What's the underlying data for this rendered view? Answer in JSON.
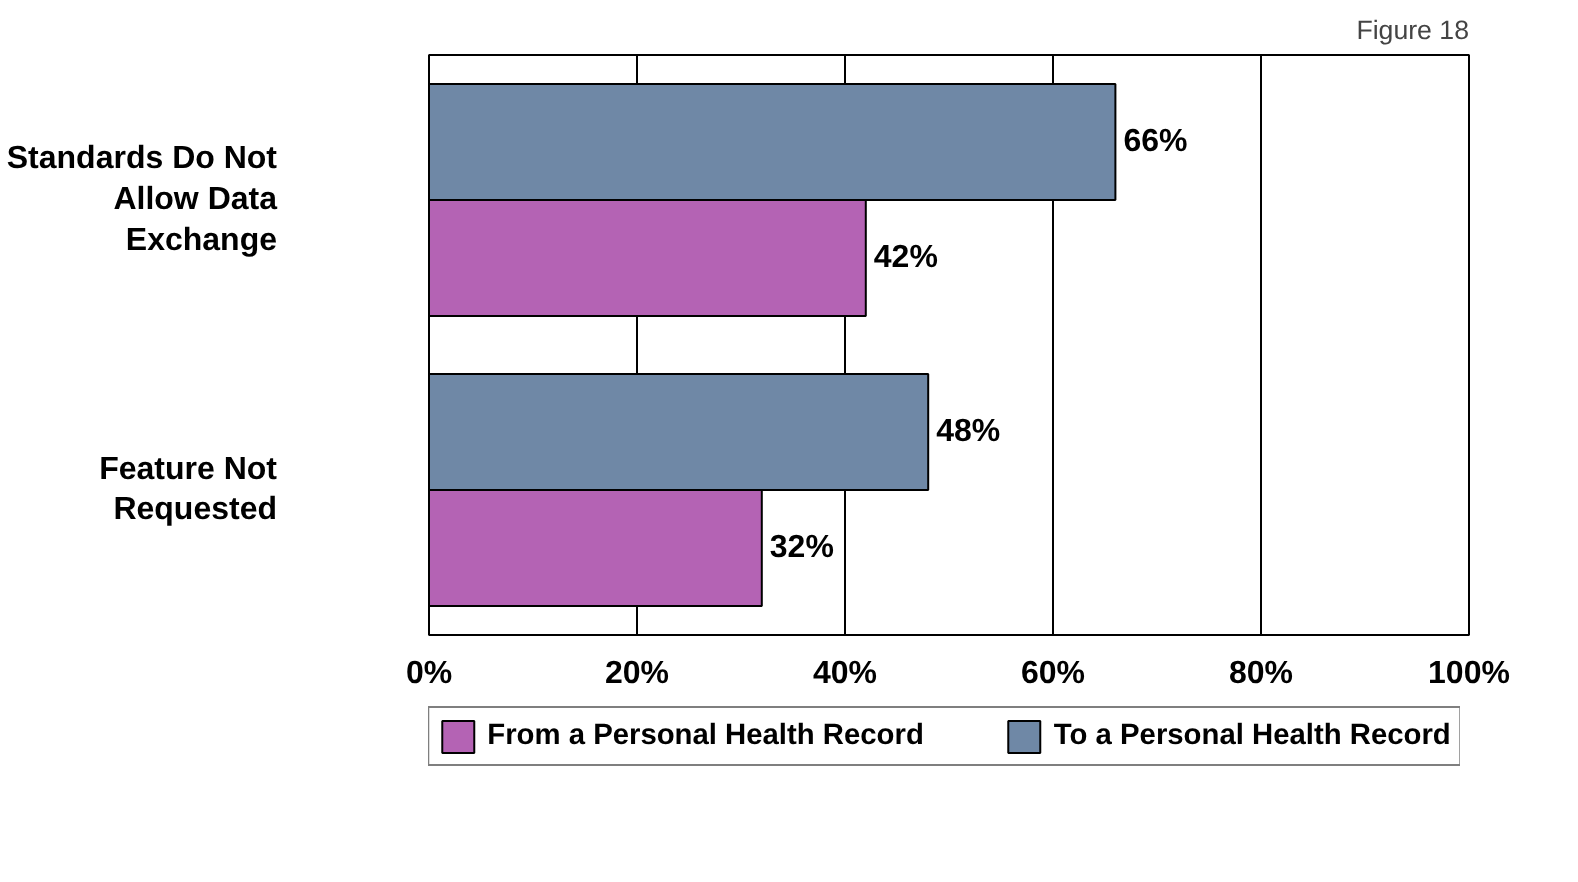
{
  "chart_data": {
    "type": "bar",
    "orientation": "horizontal",
    "categories": [
      "Standards Do Not Allow Data Exchange",
      "Feature Not Requested"
    ],
    "series": [
      {
        "name": "From a Personal Health Record",
        "color": "#b463b4",
        "values": [
          42,
          32
        ],
        "value_labels": [
          "42%",
          "32%"
        ]
      },
      {
        "name": "To a Personal Health Record",
        "color": "#6f88a6",
        "values": [
          66,
          48
        ],
        "value_labels": [
          "66%",
          "48%"
        ]
      }
    ],
    "xlim": [
      0,
      100
    ],
    "xticks": [
      {
        "value": 0,
        "label": "0%"
      },
      {
        "value": 20,
        "label": "20%"
      },
      {
        "value": 40,
        "label": "40%"
      },
      {
        "value": 60,
        "label": "60%"
      },
      {
        "value": 80,
        "label": "80%"
      },
      {
        "value": 100,
        "label": "100%"
      }
    ],
    "grid": "x",
    "legend": "bottom",
    "annotations": [
      "Figure 18"
    ]
  }
}
